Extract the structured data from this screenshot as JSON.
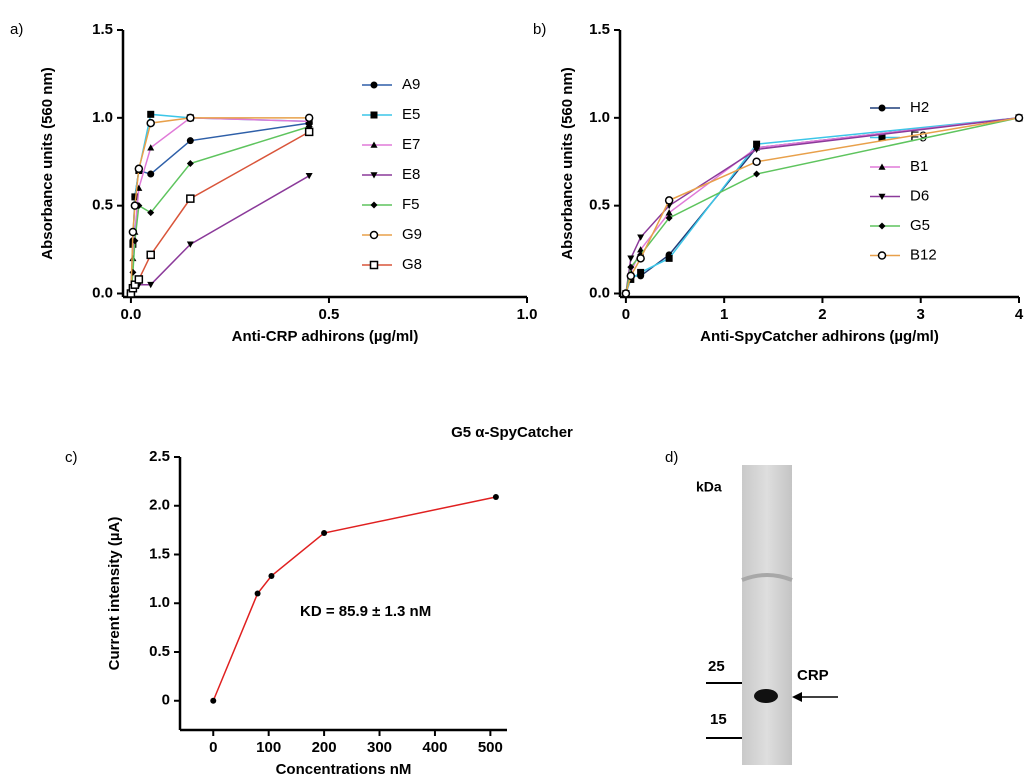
{
  "chart_data": [
    {
      "type": "line",
      "panel_label": "a)",
      "xlabel": "Anti-CRP adhirons (µg/ml)",
      "ylabel": "Absorbance units (560 nm)",
      "x": [
        0,
        0.005,
        0.01,
        0.02,
        0.05,
        0.15,
        0.45
      ],
      "series": [
        {
          "name": "A9",
          "color": "#2e5fa8",
          "marker": "circle",
          "values": [
            0,
            0.3,
            0.55,
            0.7,
            0.68,
            0.87,
            0.97
          ]
        },
        {
          "name": "E5",
          "color": "#3cc6e8",
          "marker": "square",
          "values": [
            0,
            0.28,
            0.55,
            0.7,
            1.02,
            1.0,
            0.98
          ]
        },
        {
          "name": "E7",
          "color": "#e07ad8",
          "marker": "triangle",
          "values": [
            0,
            0.2,
            0.35,
            0.6,
            0.83,
            1.0,
            0.98
          ]
        },
        {
          "name": "E8",
          "color": "#8b3a9a",
          "marker": "triangle-down",
          "values": [
            0,
            0.02,
            0.03,
            0.05,
            0.05,
            0.28,
            0.67
          ]
        },
        {
          "name": "F5",
          "color": "#5ec45e",
          "marker": "diamond",
          "values": [
            0,
            0.12,
            0.3,
            0.5,
            0.46,
            0.74,
            0.95
          ]
        },
        {
          "name": "G9",
          "color": "#e8a04a",
          "marker": "open-circle",
          "values": [
            0,
            0.35,
            0.5,
            0.71,
            0.97,
            1.0,
            1.0
          ]
        },
        {
          "name": "G8",
          "color": "#d9553a",
          "marker": "open-square",
          "values": [
            0,
            0.03,
            0.05,
            0.08,
            0.22,
            0.54,
            0.92
          ]
        }
      ],
      "xlim": [
        -0.02,
        1.0
      ],
      "ylim": [
        -0.02,
        1.5
      ],
      "xticks": [
        {
          "value": 0,
          "label": "0.0"
        },
        0.5,
        {
          "value": 1,
          "label": "1.0"
        }
      ],
      "yticks": [
        {
          "value": 0,
          "label": "0.0"
        },
        0.5,
        {
          "value": 1,
          "label": "1.0"
        },
        1.5
      ],
      "legend": "right"
    },
    {
      "type": "line",
      "panel_label": "b)",
      "xlabel": "Anti-SpyCatcher adhirons (µg/ml)",
      "ylabel": "Absorbance units (560 nm)",
      "x": [
        0,
        0.05,
        0.15,
        0.44,
        1.33,
        4
      ],
      "series": [
        {
          "name": "H2",
          "color": "#1f3f7a",
          "marker": "circle",
          "values": [
            0,
            0.1,
            0.1,
            0.22,
            0.83,
            1.0
          ]
        },
        {
          "name": "F9",
          "color": "#3cc6e8",
          "marker": "square",
          "values": [
            0,
            0.08,
            0.12,
            0.2,
            0.85,
            1.0
          ]
        },
        {
          "name": "B1",
          "color": "#e07ad8",
          "marker": "triangle",
          "values": [
            0,
            0.12,
            0.25,
            0.46,
            0.83,
            1.0
          ]
        },
        {
          "name": "D6",
          "color": "#8b3a9a",
          "marker": "triangle-down",
          "values": [
            0,
            0.2,
            0.32,
            0.5,
            0.82,
            1.0
          ]
        },
        {
          "name": "G5",
          "color": "#5ec45e",
          "marker": "diamond",
          "values": [
            0,
            0.15,
            0.22,
            0.43,
            0.68,
            1.0
          ]
        },
        {
          "name": "B12",
          "color": "#e8a04a",
          "marker": "open-circle",
          "values": [
            0,
            0.1,
            0.2,
            0.53,
            0.75,
            1.0
          ]
        }
      ],
      "xlim": [
        -0.06,
        4
      ],
      "ylim": [
        -0.02,
        1.5
      ],
      "xticks": [
        0,
        1,
        2,
        3,
        4
      ],
      "yticks": [
        {
          "value": 0,
          "label": "0.0"
        },
        0.5,
        {
          "value": 1,
          "label": "1.0"
        },
        1.5
      ],
      "legend": "right"
    },
    {
      "type": "line",
      "panel_label": "c)",
      "title": "G5 α-SpyCatcher",
      "annotation": "KD = 85.9 ± 1.3 nM",
      "xlabel": "Concentrations nM",
      "ylabel": "Current intensity (µA)",
      "x": [
        0,
        80,
        105,
        200,
        510
      ],
      "series": [
        {
          "color": "#e02020",
          "marker": "circle",
          "values": [
            0,
            1.1,
            1.28,
            1.72,
            2.09
          ]
        }
      ],
      "xlim": [
        -60,
        530
      ],
      "ylim": [
        -0.3,
        2.5
      ],
      "xticks": [
        0,
        100,
        200,
        300,
        400,
        500
      ],
      "yticks": [
        0,
        0.5,
        {
          "value": 1,
          "label": "1.0"
        },
        1.5,
        {
          "value": 2,
          "label": "2.0"
        },
        2.5
      ]
    }
  ],
  "gel": {
    "panel_label": "d)",
    "unit": "kDa",
    "markers": [
      25,
      15
    ],
    "band": "CRP"
  }
}
